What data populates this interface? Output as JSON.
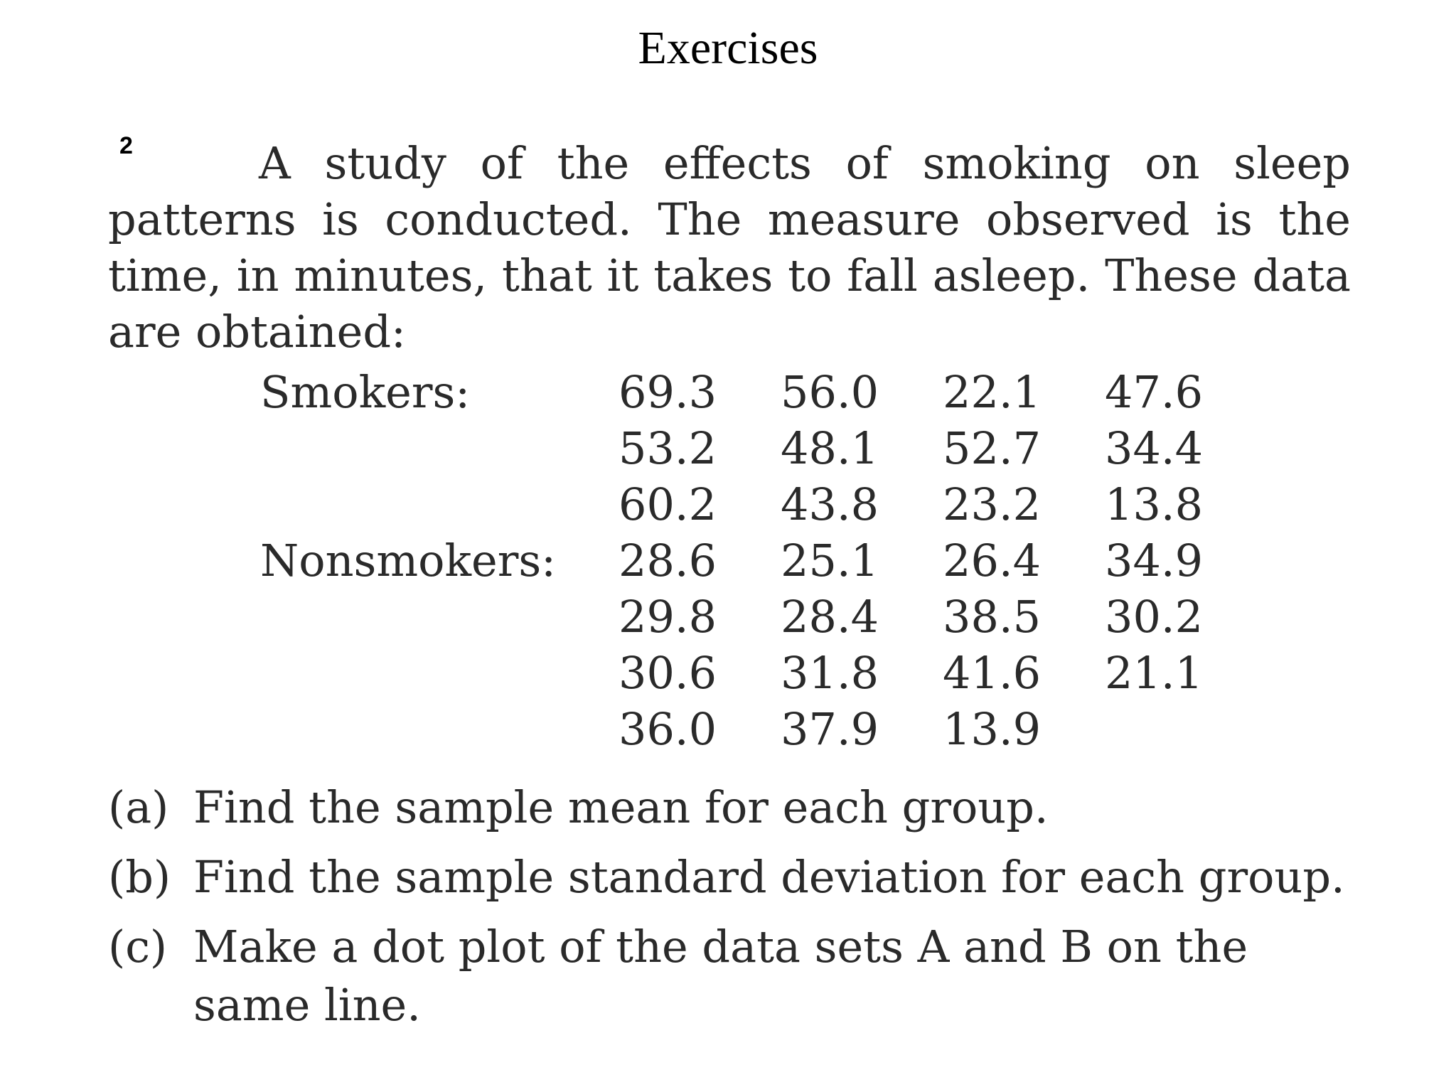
{
  "heading": "Exercises",
  "exercise_number": "2",
  "intro": "A study of the effects of smoking on sleep patterns is conducted. The measure observed is the time, in minutes, that it takes to fall asleep. These data are obtained:",
  "groups": [
    {
      "label": "Smokers:",
      "rows": [
        [
          "69.3",
          "56.0",
          "22.1",
          "47.6"
        ],
        [
          "53.2",
          "48.1",
          "52.7",
          "34.4"
        ],
        [
          "60.2",
          "43.8",
          "23.2",
          "13.8"
        ]
      ]
    },
    {
      "label": "Nonsmokers:",
      "rows": [
        [
          "28.6",
          "25.1",
          "26.4",
          "34.9"
        ],
        [
          "29.8",
          "28.4",
          "38.5",
          "30.2"
        ],
        [
          "30.6",
          "31.8",
          "41.6",
          "21.1"
        ],
        [
          "36.0",
          "37.9",
          "13.9"
        ]
      ]
    }
  ],
  "questions": [
    {
      "label": "(a)",
      "text": "Find the sample mean for each group."
    },
    {
      "label": "(b)",
      "text": "Find the sample standard deviation for each group."
    },
    {
      "label": "(c)",
      "text": "Make a dot plot of the data sets A and B on the",
      "continuation": "same line."
    }
  ]
}
